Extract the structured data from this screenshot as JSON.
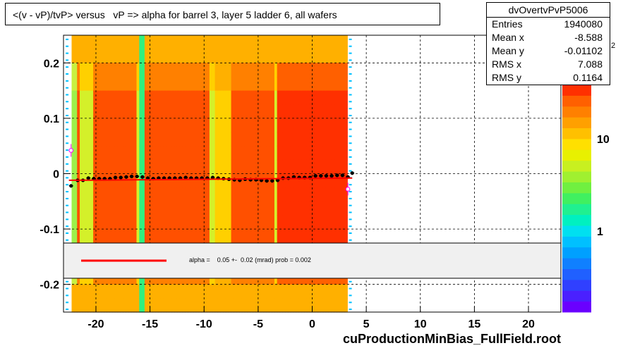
{
  "title": "<(v - vP)/tvP> versus   vP => alpha for barrel 3, layer 5 ladder 6, all wafers",
  "stats": {
    "name": "dvOvertvPvP5006",
    "rows": [
      {
        "key": "Entries",
        "value": "1940080"
      },
      {
        "key": "Mean x",
        "value": "-8.588"
      },
      {
        "key": "Mean y",
        "value": "-0.01102"
      },
      {
        "key": "RMS x",
        "value": "7.088"
      },
      {
        "key": "RMS y",
        "value": "0.1164"
      }
    ]
  },
  "fit_legend": "alpha =    0.05 +-  0.02 (mrad) prob = 0.002",
  "footer": "cuProductionMinBias_FullField.root",
  "colors": {
    "fit_line": "#ff0000",
    "profile_points": "#000000",
    "outlier_points": "#ff00ff"
  },
  "chart_data": {
    "type": "heatmap",
    "title": "<(v - vP)/tvP> versus   vP => alpha for barrel 3, layer 5 ladder 6, all wafers",
    "xlabel": "",
    "ylabel": "",
    "xlim": [
      -23,
      23
    ],
    "ylim": [
      -0.25,
      0.25
    ],
    "x_ticks": [
      -20,
      -15,
      -10,
      -5,
      0,
      5,
      10,
      15,
      20
    ],
    "x_tick_labels": [
      "-20",
      "-15",
      "-10",
      "-5",
      "0",
      "5",
      "10",
      "15",
      "20"
    ],
    "y_ticks": [
      -0.2,
      -0.1,
      0,
      0.1,
      0.2
    ],
    "y_tick_labels": [
      "-0.2",
      "-0.1",
      "0",
      "0.1",
      "0.2"
    ],
    "z_scale": "log",
    "z_tick_labels": [
      "1",
      "10"
    ],
    "z_top_label_fragment": "2",
    "grid": true,
    "filled_x_range": [
      -22.5,
      3.5
    ],
    "profile": {
      "x": [
        -22.3,
        -21.7,
        -21.2,
        -20.7,
        -20.2,
        -19.7,
        -19.2,
        -18.7,
        -18.2,
        -17.7,
        -17.2,
        -16.7,
        -16.2,
        -15.7,
        -15.2,
        -14.7,
        -14.2,
        -13.7,
        -13.2,
        -12.7,
        -12.2,
        -11.7,
        -11.2,
        -10.7,
        -10.2,
        -9.7,
        -9.2,
        -8.7,
        -8.2,
        -7.7,
        -7.2,
        -6.7,
        -6.2,
        -5.7,
        -5.2,
        -4.7,
        -4.2,
        -3.7,
        -3.2,
        -2.7,
        -2.2,
        -1.7,
        -1.2,
        -0.7,
        -0.2,
        0.3,
        0.8,
        1.3,
        1.8,
        2.3,
        2.8,
        3.3,
        3.7
      ],
      "y": [
        -0.022,
        -0.012,
        -0.012,
        -0.008,
        -0.009,
        -0.009,
        -0.009,
        -0.009,
        -0.007,
        -0.007,
        -0.006,
        -0.005,
        -0.005,
        -0.006,
        -0.008,
        -0.009,
        -0.008,
        -0.008,
        -0.008,
        -0.008,
        -0.008,
        -0.007,
        -0.008,
        -0.008,
        -0.008,
        -0.008,
        -0.007,
        -0.008,
        -0.009,
        -0.01,
        -0.011,
        -0.012,
        -0.01,
        -0.011,
        -0.011,
        -0.012,
        -0.013,
        -0.013,
        -0.012,
        -0.008,
        -0.008,
        -0.006,
        -0.007,
        -0.007,
        -0.007,
        -0.004,
        -0.004,
        -0.004,
        -0.004,
        -0.003,
        -0.003,
        -0.006,
        0.001
      ]
    },
    "outliers": {
      "x": [
        -22.3,
        3.3
      ],
      "y": [
        0.042,
        -0.028
      ]
    },
    "fit": {
      "x_range": [
        -22.5,
        3.7
      ],
      "y_start": -0.012,
      "y_end": -0.008
    }
  }
}
